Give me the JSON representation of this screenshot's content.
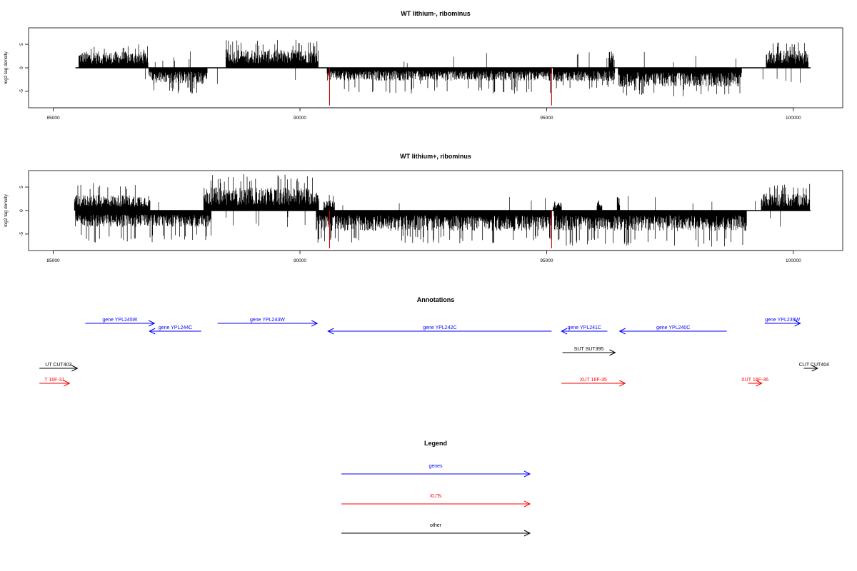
{
  "chart_data": [
    {
      "type": "bar",
      "title": "WT lithium-, ribominus",
      "ylabel": "log2 tag density",
      "xlabel": "",
      "xlim": [
        84500,
        101000
      ],
      "ylim": [
        -8.5,
        8.5
      ],
      "xticks": [
        85000,
        90000,
        95000,
        100000
      ],
      "yticks": [
        -5,
        0,
        5
      ],
      "grid": false,
      "baseline": {
        "x": [
          85450,
          100350
        ],
        "y": 0
      },
      "forward_coverage": [
        {
          "x": [
            85520,
            86920
          ],
          "y_mean": 2.4,
          "y_max": 5.0
        },
        {
          "x": [
            88500,
            90370
          ],
          "y_mean": 2.7,
          "y_max": 6.0
        },
        {
          "x": [
            95620,
            95630
          ],
          "y_mean": 3.4,
          "y_max": 3.4
        },
        {
          "x": [
            96260,
            96350
          ],
          "y_mean": 2.6,
          "y_max": 3.6
        },
        {
          "x": [
            99450,
            100300
          ],
          "y_mean": 2.6,
          "y_max": 5.5
        }
      ],
      "reverse_coverage": [
        {
          "x": [
            86940,
            88120
          ],
          "y_mean": -2.3,
          "y_max": -5.5
        },
        {
          "x": [
            90550,
            95100
          ],
          "y_mean": -1.9,
          "y_max": -5.5
        },
        {
          "x": [
            95130,
            96380
          ],
          "y_mean": -2.0,
          "y_max": -4.5
        },
        {
          "x": [
            96450,
            98950
          ],
          "y_mean": -2.8,
          "y_max": -6.2
        }
      ],
      "highlights": [
        {
          "x": 90600,
          "y": -8,
          "color": "#cc0000"
        },
        {
          "x": 95100,
          "y": -8,
          "color": "#cc0000"
        }
      ]
    },
    {
      "type": "bar",
      "title": "WT lithium+, ribominus",
      "ylabel": "log2 tag density",
      "xlabel": "",
      "xlim": [
        84500,
        101000
      ],
      "ylim": [
        -8.5,
        8.5
      ],
      "xticks": [
        85000,
        90000,
        95000,
        100000
      ],
      "yticks": [
        -5,
        0,
        5
      ],
      "grid": false,
      "baseline": {
        "x": [
          85450,
          100350
        ],
        "y": 0
      },
      "forward_coverage": [
        {
          "x": [
            85430,
            86960
          ],
          "y_mean": 2.3,
          "y_max": 6.0
        },
        {
          "x": [
            88050,
            90380
          ],
          "y_mean": 3.4,
          "y_max": 7.8
        },
        {
          "x": [
            90480,
            90700
          ],
          "y_mean": 1.5,
          "y_max": 4.0
        },
        {
          "x": [
            95130,
            95300
          ],
          "y_mean": 1.2,
          "y_max": 2.0
        },
        {
          "x": [
            96020,
            96120
          ],
          "y_mean": 1.2,
          "y_max": 2.5
        },
        {
          "x": [
            96430,
            96480
          ],
          "y_mean": 2.6,
          "y_max": 3.0
        },
        {
          "x": [
            99350,
            100330
          ],
          "y_mean": 2.5,
          "y_max": 5.7
        }
      ],
      "reverse_coverage": [
        {
          "x": [
            85450,
            88200
          ],
          "y_mean": -2.4,
          "y_max": -6.8
        },
        {
          "x": [
            90330,
            95100
          ],
          "y_mean": -3.0,
          "y_max": -7.0
        },
        {
          "x": [
            95150,
            99050
          ],
          "y_mean": -3.0,
          "y_max": -7.8
        }
      ],
      "highlights": [
        {
          "x": 90600,
          "y": -8,
          "color": "#cc0000"
        },
        {
          "x": 95100,
          "y": -8,
          "color": "#cc0000"
        }
      ]
    }
  ],
  "annotations": {
    "title": "Annotations",
    "items": [
      {
        "label": "gene YPL245W",
        "start": 85650,
        "end": 87050,
        "strand": "+",
        "row": 0,
        "color": "#0000ff"
      },
      {
        "label": "gene YPL244C",
        "start": 86950,
        "end": 88000,
        "strand": "-",
        "row": 1,
        "color": "#0000ff"
      },
      {
        "label": "gene YPL243W",
        "start": 88330,
        "end": 90350,
        "strand": "+",
        "row": 0,
        "color": "#0000ff"
      },
      {
        "label": "gene YPL242C",
        "start": 90570,
        "end": 95100,
        "strand": "-",
        "row": 1,
        "color": "#0000ff"
      },
      {
        "label": "gene YPL241C",
        "start": 95300,
        "end": 96230,
        "strand": "-",
        "row": 1,
        "color": "#0000ff"
      },
      {
        "label": "gene YPL240C",
        "start": 96480,
        "end": 98650,
        "strand": "-",
        "row": 1,
        "color": "#0000ff"
      },
      {
        "label": "gene YPL239W",
        "start": 99420,
        "end": 100140,
        "strand": "+",
        "row": 0,
        "color": "#0000ff"
      },
      {
        "label": "SUT SUT395",
        "start": 95320,
        "end": 96390,
        "strand": "+",
        "row": 3,
        "color": "#000000"
      },
      {
        "label": "UT CUT403",
        "start": 84720,
        "end": 85490,
        "strand": "+",
        "row": 4,
        "color": "#000000"
      },
      {
        "label": "CUT CUT404",
        "start": 100210,
        "end": 100490,
        "strand": "+",
        "row": 4,
        "color": "#000000"
      },
      {
        "label": "T 16F-31",
        "start": 84720,
        "end": 85330,
        "strand": "+",
        "row": 5,
        "color": "#ff0000"
      },
      {
        "label": "XUT 16F-35",
        "start": 95300,
        "end": 96590,
        "strand": "+",
        "row": 5,
        "color": "#ff0000"
      },
      {
        "label": "XUT 16F-36",
        "start": 99080,
        "end": 99360,
        "strand": "+",
        "row": 5,
        "color": "#ff0000"
      }
    ]
  },
  "legend": {
    "title": "Legend",
    "items": [
      {
        "label": "genes",
        "color": "#0000ff"
      },
      {
        "label": "XUTs",
        "color": "#ff0000"
      },
      {
        "label": "other",
        "color": "#000000"
      }
    ]
  }
}
